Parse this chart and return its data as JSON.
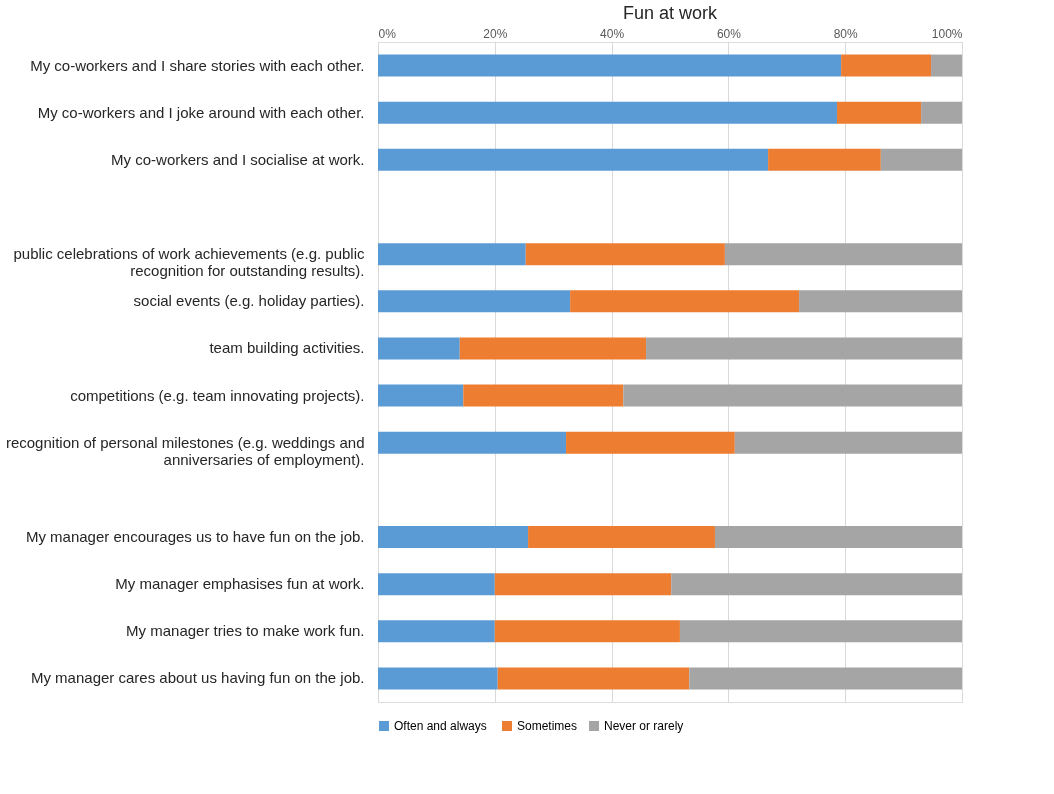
{
  "chart_data": {
    "type": "bar",
    "orientation": "horizontal",
    "stacked": true,
    "title": "Fun at work",
    "categories": [
      "My co-workers and I share stories with each other.",
      "My co-workers and I joke around with each other.",
      "My co-workers and I socialise at work.",
      null,
      "public celebrations of work achievements (e.g. public recognition for outstanding results).",
      "social events (e.g. holiday parties).",
      "team building activities.",
      "competitions (e.g. team innovating projects).",
      "recognition of personal milestones (e.g. weddings and anniversaries of employment).",
      null,
      "My manager encourages us to have fun on the job.",
      "My manager emphasises fun at work.",
      "My manager tries to make work fun.",
      "My manager cares about us having fun on the job."
    ],
    "series": [
      {
        "name": "Often and  always",
        "color": "#5b9bd5",
        "values": [
          79.3,
          78.6,
          66.8,
          null,
          25.3,
          32.9,
          14.0,
          14.6,
          32.2,
          null,
          25.7,
          20.0,
          20.0,
          20.5
        ]
      },
      {
        "name": "Sometimes",
        "color": "#ed7d31",
        "values": [
          15.4,
          14.4,
          19.3,
          null,
          34.1,
          39.2,
          31.9,
          27.4,
          28.9,
          null,
          32.0,
          30.2,
          31.7,
          32.8
        ]
      },
      {
        "name": "Never or rarely",
        "color": "#a5a5a5",
        "values": [
          5.3,
          7.0,
          13.9,
          null,
          40.6,
          27.9,
          54.1,
          58.0,
          38.9,
          null,
          42.3,
          49.8,
          48.3,
          46.7
        ]
      }
    ],
    "xlim": [
      0,
      100
    ],
    "xticks": [
      {
        "value": 0,
        "label": "0%"
      },
      {
        "value": 20,
        "label": "20%"
      },
      {
        "value": 40,
        "label": "40%"
      },
      {
        "value": 60,
        "label": "60%"
      },
      {
        "value": 80,
        "label": "80%"
      },
      {
        "value": 100,
        "label": "100%"
      }
    ],
    "grid": "x",
    "legend": "bottom"
  }
}
